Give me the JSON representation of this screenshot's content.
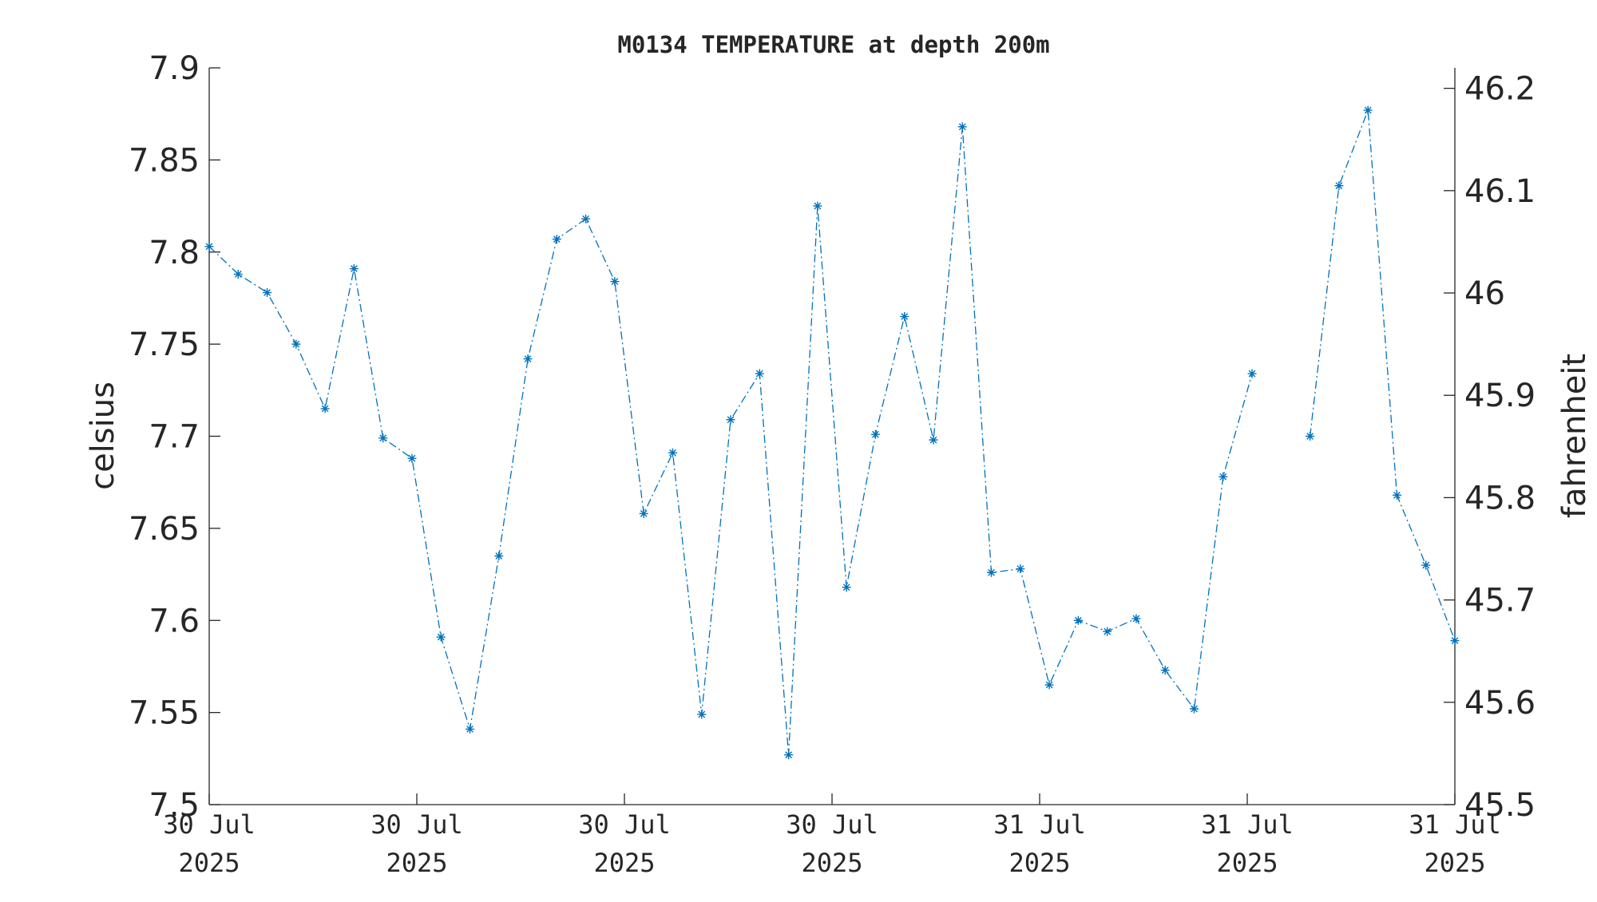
{
  "chart_data": {
    "type": "line",
    "title": "M0134 TEMPERATURE at depth 200m",
    "ylabel": "celsius",
    "ylabel_right": "fahrenheit",
    "xlabel": "",
    "ylim": [
      7.5,
      7.9
    ],
    "ylim_right": [
      45.5,
      46.22
    ],
    "yticks": [
      "7.5",
      "7.55",
      "7.6",
      "7.65",
      "7.7",
      "7.75",
      "7.8",
      "7.85",
      "7.9"
    ],
    "yticks_right": [
      "45.5",
      "45.6",
      "45.7",
      "45.8",
      "45.9",
      "46",
      "46.1",
      "46.2"
    ],
    "xticks": [
      {
        "line1": "30 Jul",
        "line2": "2025"
      },
      {
        "line1": "30 Jul",
        "line2": "2025"
      },
      {
        "line1": "30 Jul",
        "line2": "2025"
      },
      {
        "line1": "30 Jul",
        "line2": "2025"
      },
      {
        "line1": "31 Jul",
        "line2": "2025"
      },
      {
        "line1": "31 Jul",
        "line2": "2025"
      },
      {
        "line1": "31 Jul",
        "line2": "2025"
      }
    ],
    "grid": false,
    "legend": "none",
    "marker": "asterisk",
    "line_style": "dash-dot",
    "series_color": "#0072BD",
    "series": [
      {
        "values": [
          7.803,
          7.788,
          7.778,
          7.75,
          7.715,
          7.791,
          7.699,
          7.688,
          7.591,
          7.541,
          7.635,
          7.742,
          7.807,
          7.818,
          7.784,
          7.658,
          7.691,
          7.549,
          7.709,
          7.734,
          7.527,
          7.825,
          7.618,
          7.701,
          7.765,
          7.698,
          7.868,
          7.626,
          7.628,
          7.565,
          7.6,
          7.594,
          7.601,
          7.573,
          7.552,
          7.678,
          7.734,
          null,
          7.7,
          7.836,
          7.877,
          7.668,
          7.63,
          7.589
        ]
      }
    ]
  }
}
